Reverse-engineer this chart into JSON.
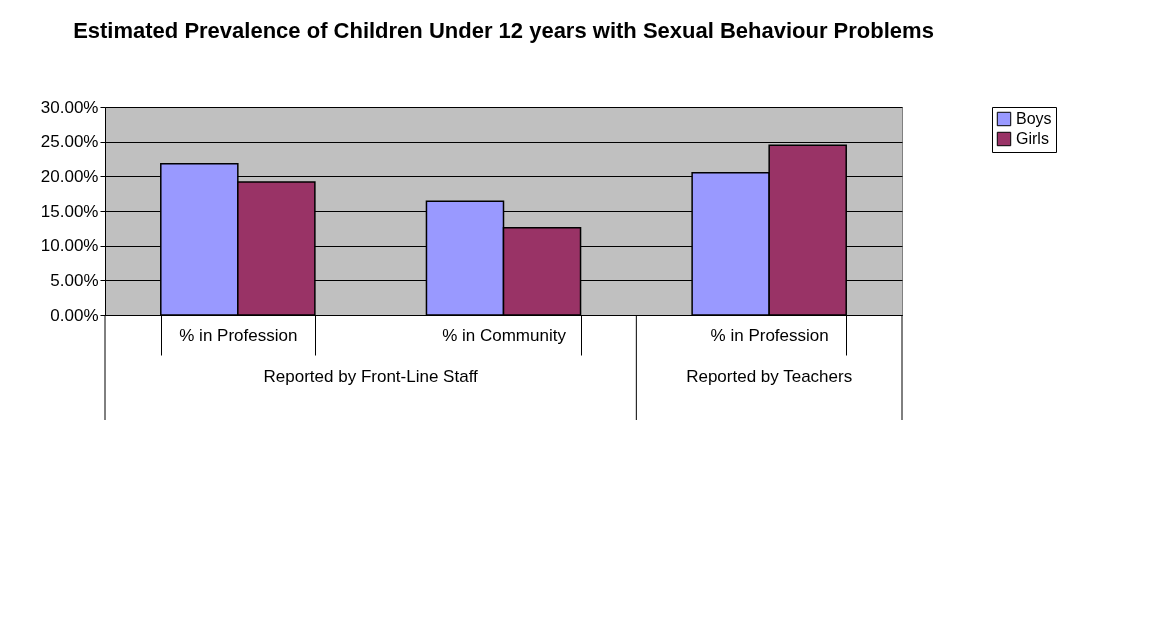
{
  "chart_data": {
    "type": "bar",
    "title": "Estimated Prevalence of Children Under 12 years with Sexual Behaviour Problems",
    "categories": [
      "% in Profession",
      "% in Community",
      "% in Profession"
    ],
    "series": [
      {
        "name": "Boys",
        "color": "#9999ff",
        "values": [
          21.8,
          16.4,
          20.5
        ]
      },
      {
        "name": "Girls",
        "color": "#993366",
        "values": [
          19.2,
          12.6,
          24.5
        ]
      }
    ],
    "annotations": [
      "Reported by Front-Line Staff",
      "Reported by Teachers"
    ],
    "ylim": [
      0,
      30
    ],
    "yticks": [
      {
        "value": 0,
        "label": "0.00%"
      },
      {
        "value": 5,
        "label": "5.00%"
      },
      {
        "value": 10,
        "label": "10.00%"
      },
      {
        "value": 15,
        "label": "15.00%"
      },
      {
        "value": 20,
        "label": "20.00%"
      },
      {
        "value": 25,
        "label": "25.00%"
      },
      {
        "value": 30,
        "label": "30.00%"
      }
    ],
    "grid": "y",
    "legend": "right"
  }
}
